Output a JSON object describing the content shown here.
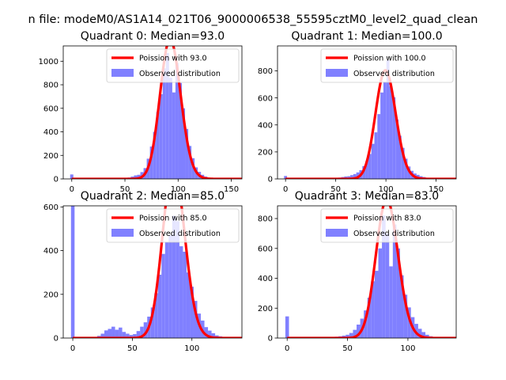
{
  "figure": {
    "suptitle": "n file: modeM0/AS1A14_021T06_9000006538_55595cztM0_level2_quad_clean"
  },
  "chart_data": [
    {
      "type": "histogram+line",
      "title": "Quadrant 0: Median=93.0",
      "xlim": [
        -8,
        160
      ],
      "ylim": [
        0,
        1130
      ],
      "xticks": [
        0,
        50,
        100,
        150
      ],
      "yticks": [
        0,
        200,
        400,
        600,
        800,
        1000
      ],
      "median": 93.0,
      "bin_width": 3.0,
      "legend": [
        "Poission with 93.0",
        "Observed distribution"
      ],
      "series_colors": {
        "line": "#ff0000",
        "hist": "#8080ff"
      },
      "outlier_bins": [
        {
          "x": 0,
          "count": 38
        }
      ],
      "hist_x": [
        42,
        45,
        48,
        51,
        54,
        57,
        60,
        63,
        66,
        69,
        72,
        75,
        78,
        81,
        84,
        87,
        90,
        93,
        96,
        99,
        102,
        105,
        108,
        111,
        114,
        117,
        120,
        123,
        126,
        129,
        132,
        135,
        138,
        141,
        144,
        147,
        150
      ],
      "hist_y": [
        3,
        4,
        6,
        8,
        12,
        20,
        30,
        35,
        58,
        92,
        172,
        275,
        400,
        568,
        720,
        940,
        1070,
        860,
        735,
        985,
        815,
        600,
        425,
        280,
        176,
        98,
        60,
        35,
        20,
        9,
        5,
        3,
        2,
        1,
        1,
        1,
        0
      ]
    },
    {
      "type": "histogram+line",
      "title": "Quadrant 1: Median=100.0",
      "xlim": [
        -8,
        170
      ],
      "ylim": [
        0,
        985
      ],
      "xticks": [
        0,
        50,
        100,
        150
      ],
      "yticks": [
        0,
        200,
        400,
        600,
        800
      ],
      "median": 100.0,
      "bin_width": 3.0,
      "legend": [
        "Poission with 100.0",
        "Observed distribution"
      ],
      "series_colors": {
        "line": "#ff0000",
        "hist": "#8080ff"
      },
      "outlier_bins": [
        {
          "x": 0,
          "count": 22
        }
      ],
      "hist_x": [
        42,
        45,
        48,
        51,
        54,
        57,
        60,
        63,
        66,
        69,
        72,
        75,
        78,
        81,
        84,
        87,
        90,
        93,
        96,
        99,
        102,
        105,
        108,
        111,
        114,
        117,
        120,
        123,
        126,
        129,
        132,
        135,
        138,
        141,
        144,
        147,
        150,
        153,
        156,
        159
      ],
      "hist_y": [
        2,
        3,
        4,
        6,
        10,
        14,
        18,
        20,
        28,
        36,
        48,
        65,
        95,
        130,
        185,
        260,
        345,
        480,
        640,
        720,
        880,
        685,
        605,
        440,
        320,
        230,
        150,
        92,
        60,
        40,
        30,
        20,
        14,
        9,
        6,
        4,
        2,
        1,
        1,
        0
      ]
    },
    {
      "type": "histogram+line",
      "title": "Quadrant 2: Median=85.0",
      "xlim": [
        -8,
        142
      ],
      "ylim": [
        0,
        605
      ],
      "xticks": [
        0,
        50,
        100
      ],
      "yticks": [
        0,
        200,
        400,
        600
      ],
      "median": 85.0,
      "bin_width": 3.0,
      "legend": [
        "Poission with 85.0",
        "Observed distribution"
      ],
      "series_colors": {
        "line": "#ff0000",
        "hist": "#8080ff"
      },
      "outlier_bins": [
        {
          "x": 0,
          "count": 605
        }
      ],
      "hist_x": [
        16,
        19,
        22,
        25,
        28,
        31,
        34,
        37,
        40,
        43,
        46,
        49,
        52,
        55,
        58,
        61,
        64,
        67,
        70,
        73,
        76,
        79,
        82,
        85,
        88,
        91,
        94,
        97,
        100,
        103,
        106,
        109,
        112,
        115,
        118,
        121,
        124,
        127,
        130,
        133
      ],
      "hist_y": [
        3,
        5,
        10,
        20,
        35,
        42,
        52,
        38,
        48,
        28,
        20,
        14,
        18,
        32,
        52,
        72,
        98,
        140,
        205,
        290,
        385,
        440,
        470,
        560,
        535,
        420,
        395,
        300,
        235,
        170,
        112,
        80,
        50,
        34,
        22,
        12,
        8,
        4,
        2,
        1
      ]
    },
    {
      "type": "histogram+line",
      "title": "Quadrant 3: Median=83.0",
      "xlim": [
        -8,
        140
      ],
      "ylim": [
        0,
        885
      ],
      "xticks": [
        0,
        50,
        100
      ],
      "yticks": [
        0,
        200,
        400,
        600,
        800
      ],
      "median": 83.0,
      "bin_width": 3.0,
      "legend": [
        "Poission with 83.0",
        "Observed distribution"
      ],
      "series_colors": {
        "line": "#ff0000",
        "hist": "#8080ff"
      },
      "outlier_bins": [
        {
          "x": 0,
          "count": 145
        }
      ],
      "hist_x": [
        32,
        35,
        38,
        41,
        44,
        47,
        50,
        53,
        56,
        59,
        62,
        65,
        68,
        71,
        74,
        77,
        80,
        83,
        86,
        89,
        92,
        95,
        98,
        101,
        104,
        107,
        110,
        113,
        116,
        119,
        122,
        125,
        128,
        131,
        134
      ],
      "hist_y": [
        2,
        3,
        5,
        9,
        12,
        16,
        22,
        34,
        55,
        90,
        130,
        185,
        270,
        380,
        450,
        600,
        820,
        700,
        480,
        760,
        600,
        420,
        290,
        205,
        140,
        95,
        62,
        40,
        22,
        12,
        6,
        3,
        2,
        1,
        0
      ]
    }
  ]
}
